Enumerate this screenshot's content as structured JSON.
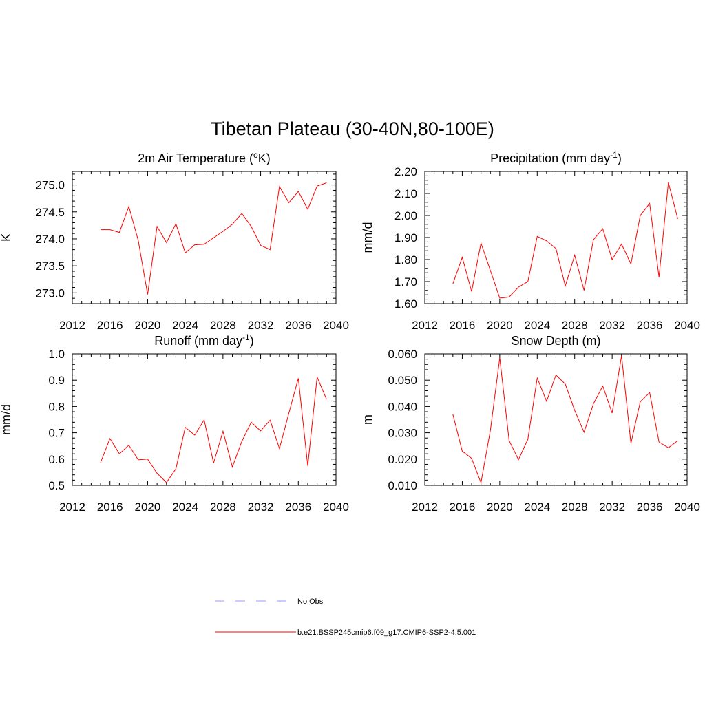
{
  "figure": {
    "title": "Tibetan Plateau (30-40N,80-100E)"
  },
  "legend": {
    "entries": [
      {
        "label": "No Obs",
        "color": "#9999ff",
        "dash": true
      },
      {
        "label": "b.e21.BSSP245cmip6.f09_g17.CMIP6-SSP2-4.5.001",
        "color": "#ff0000",
        "dash": false
      }
    ]
  },
  "chart_data": [
    {
      "type": "line",
      "title_main": "2m Air Temperature (",
      "title_sup": "o",
      "title_tail": "K)",
      "ylabel": "K",
      "xlim": [
        2012,
        2040
      ],
      "ylim": [
        272.8,
        275.25
      ],
      "xticks": [
        2012,
        2016,
        2020,
        2024,
        2028,
        2032,
        2036,
        2040
      ],
      "xtick_labels": [
        "2012",
        "2016",
        "2020",
        "2024",
        "2028",
        "2032",
        "2036",
        "2040"
      ],
      "yticks": [
        273.0,
        273.5,
        274.0,
        274.5,
        275.0
      ],
      "ytick_labels": [
        "273.0",
        "273.5",
        "274.0",
        "274.5",
        "275.0"
      ],
      "series": [
        {
          "color": "#ff0000",
          "x": [
            2015,
            2016,
            2017,
            2018,
            2019,
            2020,
            2021,
            2022,
            2023,
            2024,
            2025,
            2026,
            2027,
            2028,
            2029,
            2030,
            2031,
            2032,
            2033,
            2034,
            2035,
            2036,
            2037,
            2038,
            2039
          ],
          "y": [
            274.17,
            274.17,
            274.12,
            274.6,
            273.97,
            272.97,
            274.23,
            273.93,
            274.28,
            273.74,
            273.89,
            273.9,
            274.02,
            274.14,
            274.27,
            274.47,
            274.23,
            273.88,
            273.8,
            274.97,
            274.67,
            274.88,
            274.55,
            274.98,
            275.04
          ]
        }
      ]
    },
    {
      "type": "line",
      "title_main": "Precipitation (mm day",
      "title_sup": "-1",
      "title_tail": ")",
      "ylabel": "mm/d",
      "xlim": [
        2012,
        2040
      ],
      "ylim": [
        1.6,
        2.2
      ],
      "xticks": [
        2012,
        2016,
        2020,
        2024,
        2028,
        2032,
        2036,
        2040
      ],
      "xtick_labels": [
        "2012",
        "2016",
        "2020",
        "2024",
        "2028",
        "2032",
        "2036",
        "2040"
      ],
      "yticks": [
        1.6,
        1.7,
        1.8,
        1.9,
        2.0,
        2.1,
        2.2
      ],
      "ytick_labels": [
        "1.60",
        "1.70",
        "1.80",
        "1.90",
        "2.00",
        "2.10",
        "2.20"
      ],
      "series": [
        {
          "color": "#ff0000",
          "x": [
            2015,
            2016,
            2017,
            2018,
            2019,
            2020,
            2021,
            2022,
            2023,
            2024,
            2025,
            2026,
            2027,
            2028,
            2029,
            2030,
            2031,
            2032,
            2033,
            2034,
            2035,
            2036,
            2037,
            2038,
            2039
          ],
          "y": [
            1.69,
            1.81,
            1.655,
            1.875,
            1.75,
            1.625,
            1.63,
            1.675,
            1.7,
            1.905,
            1.885,
            1.85,
            1.68,
            1.82,
            1.66,
            1.89,
            1.94,
            1.8,
            1.87,
            1.78,
            2.0,
            2.055,
            1.72,
            2.15,
            1.985
          ]
        }
      ]
    },
    {
      "type": "line",
      "title_main": "Runoff (mm day",
      "title_sup": "-1",
      "title_tail": ")",
      "ylabel": "mm/d",
      "xlim": [
        2012,
        2040
      ],
      "ylim": [
        0.5,
        1.0
      ],
      "xticks": [
        2012,
        2016,
        2020,
        2024,
        2028,
        2032,
        2036,
        2040
      ],
      "xtick_labels": [
        "2012",
        "2016",
        "2020",
        "2024",
        "2028",
        "2032",
        "2036",
        "2040"
      ],
      "yticks": [
        0.5,
        0.6,
        0.7,
        0.8,
        0.9,
        1.0
      ],
      "ytick_labels": [
        "0.5",
        "0.6",
        "0.7",
        "0.8",
        "0.9",
        "1.0"
      ],
      "series": [
        {
          "color": "#ff0000",
          "x": [
            2015,
            2016,
            2017,
            2018,
            2019,
            2020,
            2021,
            2022,
            2023,
            2024,
            2025,
            2026,
            2027,
            2028,
            2029,
            2030,
            2031,
            2032,
            2033,
            2034,
            2035,
            2036,
            2037,
            2038,
            2039
          ],
          "y": [
            0.587,
            0.678,
            0.62,
            0.653,
            0.597,
            0.6,
            0.546,
            0.511,
            0.563,
            0.721,
            0.691,
            0.749,
            0.585,
            0.706,
            0.57,
            0.667,
            0.74,
            0.707,
            0.748,
            0.64,
            0.775,
            0.907,
            0.574,
            0.912,
            0.827
          ]
        }
      ]
    },
    {
      "type": "line",
      "title_main": "Snow Depth (m)",
      "title_sup": "",
      "title_tail": "",
      "ylabel": "m",
      "xlim": [
        2012,
        2040
      ],
      "ylim": [
        0.01,
        0.06
      ],
      "xticks": [
        2012,
        2016,
        2020,
        2024,
        2028,
        2032,
        2036,
        2040
      ],
      "xtick_labels": [
        "2012",
        "2016",
        "2020",
        "2024",
        "2028",
        "2032",
        "2036",
        "2040"
      ],
      "yticks": [
        0.01,
        0.02,
        0.03,
        0.04,
        0.05,
        0.06
      ],
      "ytick_labels": [
        "0.010",
        "0.020",
        "0.030",
        "0.040",
        "0.050",
        "0.060"
      ],
      "series": [
        {
          "color": "#ff0000",
          "x": [
            2015,
            2016,
            2017,
            2018,
            2019,
            2020,
            2021,
            2022,
            2023,
            2024,
            2025,
            2026,
            2027,
            2028,
            2029,
            2030,
            2031,
            2032,
            2033,
            2034,
            2035,
            2036,
            2037,
            2038,
            2039
          ],
          "y": [
            0.037,
            0.023,
            0.0203,
            0.011,
            0.031,
            0.0585,
            0.027,
            0.0198,
            0.0275,
            0.0508,
            0.042,
            0.052,
            0.0485,
            0.0385,
            0.0302,
            0.041,
            0.0478,
            0.0375,
            0.0593,
            0.026,
            0.0418,
            0.0453,
            0.0265,
            0.0243,
            0.027
          ]
        }
      ]
    }
  ]
}
